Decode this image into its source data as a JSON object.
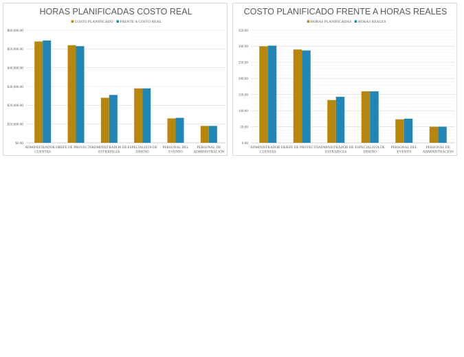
{
  "colors": {
    "series1": "#b8860b",
    "series2": "#1f86b5"
  },
  "chart_data": [
    {
      "type": "bar",
      "title": "HORAS PLANIFICADAS COSTO REAL",
      "categories": [
        [
          "ADMINISTRADOR DE",
          "CUENTAS"
        ],
        [
          "JEFE DE PROYECTO"
        ],
        [
          "ADMINISTRADOR DE",
          "ESTRATEGIA"
        ],
        [
          "ESPECIALISTA DE",
          "DISEÑO"
        ],
        [
          "PERSONAL DEL",
          "EVENTO"
        ],
        [
          "PERSONAL DE",
          "ADMINISTRACIÓN"
        ]
      ],
      "series": [
        {
          "name": "COSTO PLANIFICADO",
          "values": [
            54000,
            52000,
            24000,
            29000,
            13000,
            9000
          ]
        },
        {
          "name": "FRENTE A COSTO REAL",
          "values": [
            54500,
            51500,
            25500,
            29000,
            13300,
            9000
          ]
        }
      ],
      "ylim": [
        0,
        60000
      ],
      "yticks": [
        0,
        10000,
        20000,
        30000,
        40000,
        50000,
        60000
      ],
      "ytick_labels": [
        "$0.00",
        "$10,000.00",
        "$20,000.00",
        "$30,000.00",
        "$40,000.00",
        "$50,000.00",
        "$60,000.00"
      ],
      "minor_grid": false,
      "legend": "top"
    },
    {
      "type": "bar",
      "title": "COSTO PLANIFICADO FRENTE A HORAS REALES",
      "categories": [
        [
          "ADMINISTRADOR DE",
          "CUENTAS"
        ],
        [
          "JEFE DE PROYECTO"
        ],
        [
          "ADMINISTRADOR DE",
          "ESTRATEGIA"
        ],
        [
          "ESPECIALISTA DE",
          "DISEÑO"
        ],
        [
          "PERSONAL DEL",
          "EVENTO"
        ],
        [
          "PERSONAL DE",
          "ADMINISTRACIÓN"
        ]
      ],
      "series": [
        {
          "name": "HORAS PLANIFICADAS",
          "values": [
            300,
            290,
            133,
            160,
            73,
            50
          ]
        },
        {
          "name": "HORAS REALES",
          "values": [
            302,
            287,
            143,
            160,
            75,
            50
          ]
        }
      ],
      "ylim": [
        0,
        350
      ],
      "yticks": [
        0,
        50,
        100,
        150,
        200,
        250,
        300,
        350
      ],
      "ytick_labels": [
        "0.00",
        "50.00",
        "100.00",
        "150.00",
        "200.00",
        "250.00",
        "300.00",
        "350.00"
      ],
      "minor_grid": true,
      "legend": "top"
    }
  ]
}
